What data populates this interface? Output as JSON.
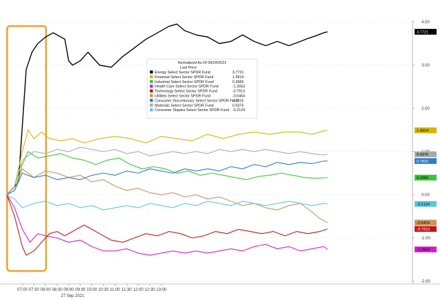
{
  "chart_data": {
    "type": "line",
    "title": "",
    "xlabel": "",
    "ylabel": "",
    "date_label": "27 Sep 2021",
    "time_ticks": [
      "07:00",
      "07:30",
      "08:00",
      "08:30",
      "09:00",
      "09:30",
      "10:00",
      "10:30",
      "11:00",
      "11:30",
      "12:00",
      "12:30",
      "13:00"
    ],
    "y_ticks": [
      "4.00",
      "3.00",
      "2.00",
      "1.00",
      "0.00",
      "-1.00",
      "-2.00"
    ],
    "y_range": [
      -2.0,
      4.0
    ],
    "legend": {
      "title": "Normalized As Of 09/24/2021",
      "subtitle": "Last Price",
      "placement": "center"
    },
    "series": [
      {
        "name": "Energy Select Sector SPDR Fund",
        "last": "3.7721",
        "color": "#000000",
        "text_color": "#ffffff",
        "points": [
          [
            0,
            0
          ],
          [
            6,
            0.3
          ],
          [
            10,
            2.9
          ],
          [
            13,
            3.3
          ],
          [
            16,
            3.5
          ],
          [
            20,
            3.65
          ],
          [
            24,
            3.75
          ],
          [
            28,
            3.65
          ],
          [
            30,
            3.6
          ],
          [
            32,
            3.1
          ],
          [
            34,
            3.0
          ],
          [
            38,
            3.1
          ],
          [
            42,
            3.3
          ],
          [
            48,
            3.0
          ],
          [
            54,
            2.95
          ],
          [
            60,
            3.2
          ],
          [
            66,
            3.4
          ],
          [
            72,
            3.6
          ],
          [
            78,
            3.75
          ],
          [
            84,
            3.9
          ],
          [
            88,
            3.95
          ],
          [
            92,
            3.8
          ],
          [
            98,
            3.7
          ],
          [
            104,
            3.65
          ],
          [
            110,
            3.5
          ],
          [
            116,
            3.55
          ],
          [
            122,
            3.7
          ],
          [
            128,
            3.55
          ],
          [
            134,
            3.45
          ],
          [
            140,
            3.55
          ],
          [
            146,
            3.45
          ],
          [
            152,
            3.55
          ],
          [
            156,
            3.62
          ],
          [
            160,
            3.68
          ],
          [
            164,
            3.75
          ],
          [
            166,
            3.7721
          ]
        ]
      },
      {
        "name": "Financial Select Sector SPDR Fund",
        "last": "1.4914",
        "color": "#d4b406",
        "text_color": "#000000",
        "points": [
          [
            0,
            0
          ],
          [
            4,
            0.2
          ],
          [
            8,
            1.0
          ],
          [
            11,
            1.5
          ],
          [
            14,
            1.3
          ],
          [
            18,
            1.45
          ],
          [
            22,
            1.3
          ],
          [
            28,
            1.25
          ],
          [
            34,
            1.3
          ],
          [
            40,
            1.2
          ],
          [
            48,
            1.3
          ],
          [
            56,
            1.35
          ],
          [
            64,
            1.3
          ],
          [
            72,
            1.2
          ],
          [
            80,
            1.35
          ],
          [
            88,
            1.3
          ],
          [
            96,
            1.25
          ],
          [
            104,
            1.4
          ],
          [
            112,
            1.3
          ],
          [
            120,
            1.4
          ],
          [
            128,
            1.45
          ],
          [
            136,
            1.4
          ],
          [
            144,
            1.45
          ],
          [
            152,
            1.45
          ],
          [
            158,
            1.4
          ],
          [
            164,
            1.48
          ],
          [
            166,
            1.4914
          ]
        ]
      },
      {
        "name": "Industrial Select Sector SPDR Fund",
        "last": "0.3966",
        "color": "#37c837",
        "text_color": "#000000",
        "points": [
          [
            0,
            0
          ],
          [
            4,
            0.1
          ],
          [
            8,
            0.7
          ],
          [
            11,
            1.0
          ],
          [
            16,
            0.85
          ],
          [
            22,
            0.9
          ],
          [
            28,
            0.95
          ],
          [
            34,
            0.85
          ],
          [
            40,
            0.8
          ],
          [
            46,
            0.7
          ],
          [
            52,
            0.8
          ],
          [
            58,
            0.85
          ],
          [
            64,
            0.7
          ],
          [
            70,
            0.6
          ],
          [
            76,
            0.65
          ],
          [
            82,
            0.6
          ],
          [
            88,
            0.5
          ],
          [
            94,
            0.55
          ],
          [
            100,
            0.45
          ],
          [
            106,
            0.5
          ],
          [
            112,
            0.45
          ],
          [
            118,
            0.4
          ],
          [
            124,
            0.35
          ],
          [
            130,
            0.42
          ],
          [
            136,
            0.45
          ],
          [
            142,
            0.5
          ],
          [
            148,
            0.45
          ],
          [
            154,
            0.4
          ],
          [
            160,
            0.38
          ],
          [
            166,
            0.3966
          ]
        ]
      },
      {
        "name": "Health Care Select Sector SPDR Fund",
        "last": "-1.2653",
        "color": "#d21ed2",
        "text_color": "#000000",
        "points": [
          [
            0,
            0
          ],
          [
            4,
            -0.3
          ],
          [
            8,
            -0.8
          ],
          [
            12,
            -1.1
          ],
          [
            16,
            -0.9
          ],
          [
            20,
            -0.95
          ],
          [
            26,
            -1.0
          ],
          [
            32,
            -1.1
          ],
          [
            38,
            -1.05
          ],
          [
            44,
            -1.2
          ],
          [
            50,
            -1.3
          ],
          [
            56,
            -1.3
          ],
          [
            62,
            -1.25
          ],
          [
            68,
            -1.35
          ],
          [
            74,
            -1.4
          ],
          [
            80,
            -1.35
          ],
          [
            86,
            -1.3
          ],
          [
            92,
            -1.35
          ],
          [
            98,
            -1.3
          ],
          [
            104,
            -1.35
          ],
          [
            110,
            -1.3
          ],
          [
            116,
            -1.25
          ],
          [
            122,
            -1.3
          ],
          [
            128,
            -1.2
          ],
          [
            134,
            -1.15
          ],
          [
            140,
            -1.25
          ],
          [
            146,
            -1.2
          ],
          [
            152,
            -1.3
          ],
          [
            158,
            -1.25
          ],
          [
            164,
            -1.2
          ],
          [
            166,
            -1.2653
          ]
        ]
      },
      {
        "name": "Technology Select Sector SPDR Fund",
        "last": "-0.7913",
        "color": "#c81414",
        "text_color": "#ffffff",
        "points": [
          [
            0,
            0
          ],
          [
            4,
            -0.5
          ],
          [
            8,
            -1.2
          ],
          [
            10,
            -1.4
          ],
          [
            14,
            -1.3
          ],
          [
            18,
            -1.1
          ],
          [
            22,
            -0.9
          ],
          [
            26,
            -0.85
          ],
          [
            30,
            -0.95
          ],
          [
            36,
            -0.8
          ],
          [
            40,
            -0.7
          ],
          [
            44,
            -0.8
          ],
          [
            48,
            -0.9
          ],
          [
            54,
            -1.05
          ],
          [
            60,
            -1.1
          ],
          [
            66,
            -1.0
          ],
          [
            72,
            -0.9
          ],
          [
            78,
            -0.95
          ],
          [
            84,
            -0.85
          ],
          [
            90,
            -0.9
          ],
          [
            96,
            -1.0
          ],
          [
            102,
            -0.95
          ],
          [
            108,
            -0.85
          ],
          [
            114,
            -0.9
          ],
          [
            120,
            -0.8
          ],
          [
            126,
            -0.85
          ],
          [
            132,
            -0.9
          ],
          [
            138,
            -0.85
          ],
          [
            144,
            -0.95
          ],
          [
            150,
            -0.85
          ],
          [
            156,
            -0.9
          ],
          [
            162,
            -0.85
          ],
          [
            166,
            -0.7913
          ]
        ]
      },
      {
        "name": "Utilities Select Sector SPDR Fund",
        "last": "-0.6454",
        "color": "#c8955a",
        "text_color": "#000000",
        "points": [
          [
            0,
            0
          ],
          [
            4,
            0.1
          ],
          [
            8,
            0.6
          ],
          [
            14,
            0.4
          ],
          [
            20,
            0.55
          ],
          [
            26,
            0.5
          ],
          [
            32,
            0.4
          ],
          [
            38,
            0.45
          ],
          [
            44,
            0.3
          ],
          [
            50,
            0.35
          ],
          [
            56,
            0.2
          ],
          [
            62,
            0.1
          ],
          [
            68,
            0.15
          ],
          [
            74,
            0.05
          ],
          [
            80,
            0.0
          ],
          [
            86,
            0.05
          ],
          [
            92,
            -0.05
          ],
          [
            98,
            0.0
          ],
          [
            104,
            -0.1
          ],
          [
            110,
            -0.05
          ],
          [
            116,
            -0.15
          ],
          [
            122,
            -0.25
          ],
          [
            128,
            -0.2
          ],
          [
            134,
            -0.3
          ],
          [
            140,
            -0.35
          ],
          [
            146,
            -0.25
          ],
          [
            152,
            -0.2
          ],
          [
            158,
            -0.4
          ],
          [
            162,
            -0.55
          ],
          [
            166,
            -0.6454
          ]
        ]
      },
      {
        "name": "Consumer Discretionary Select Sector SPDR Fund",
        "last": "0.7815",
        "color": "#2d7dc8",
        "text_color": "#ffffff",
        "points": [
          [
            0,
            0
          ],
          [
            4,
            0.1
          ],
          [
            8,
            0.5
          ],
          [
            14,
            0.4
          ],
          [
            20,
            0.45
          ],
          [
            26,
            0.35
          ],
          [
            32,
            0.4
          ],
          [
            38,
            0.35
          ],
          [
            44,
            0.45
          ],
          [
            50,
            0.5
          ],
          [
            56,
            0.45
          ],
          [
            62,
            0.55
          ],
          [
            68,
            0.5
          ],
          [
            74,
            0.6
          ],
          [
            80,
            0.55
          ],
          [
            86,
            0.5
          ],
          [
            92,
            0.6
          ],
          [
            98,
            0.55
          ],
          [
            104,
            0.6
          ],
          [
            110,
            0.55
          ],
          [
            116,
            0.65
          ],
          [
            122,
            0.6
          ],
          [
            128,
            0.7
          ],
          [
            134,
            0.65
          ],
          [
            140,
            0.75
          ],
          [
            146,
            0.7
          ],
          [
            152,
            0.75
          ],
          [
            158,
            0.72
          ],
          [
            164,
            0.78
          ],
          [
            166,
            0.7815
          ]
        ]
      },
      {
        "name": "Materials Select Sector SPDR Fund",
        "last": "0.9375",
        "color": "#aaaaaa",
        "text_color": "#000000",
        "points": [
          [
            0,
            0
          ],
          [
            4,
            0.2
          ],
          [
            8,
            0.8
          ],
          [
            14,
            1.0
          ],
          [
            20,
            0.95
          ],
          [
            26,
            1.05
          ],
          [
            32,
            1.0
          ],
          [
            38,
            1.1
          ],
          [
            44,
            1.05
          ],
          [
            50,
            1.0
          ],
          [
            56,
            1.05
          ],
          [
            62,
            0.95
          ],
          [
            68,
            1.0
          ],
          [
            74,
            0.9
          ],
          [
            80,
            0.95
          ],
          [
            86,
            1.0
          ],
          [
            92,
            0.95
          ],
          [
            98,
            1.0
          ],
          [
            104,
            0.95
          ],
          [
            110,
            1.05
          ],
          [
            116,
            1.0
          ],
          [
            122,
            1.05
          ],
          [
            128,
            1.0
          ],
          [
            134,
            1.05
          ],
          [
            140,
            1.0
          ],
          [
            146,
            0.95
          ],
          [
            152,
            1.0
          ],
          [
            158,
            0.95
          ],
          [
            164,
            0.92
          ],
          [
            166,
            0.9375
          ]
        ]
      },
      {
        "name": "Consumer Staples Select Sector SPDR Fund",
        "last": "-0.2124",
        "color": "#5ac8dc",
        "text_color": "#000000",
        "points": [
          [
            0,
            0
          ],
          [
            4,
            -0.1
          ],
          [
            8,
            -0.3
          ],
          [
            14,
            -0.2
          ],
          [
            20,
            -0.15
          ],
          [
            26,
            -0.25
          ],
          [
            32,
            -0.2
          ],
          [
            38,
            -0.3
          ],
          [
            44,
            -0.25
          ],
          [
            50,
            -0.35
          ],
          [
            56,
            -0.3
          ],
          [
            62,
            -0.25
          ],
          [
            68,
            -0.3
          ],
          [
            74,
            -0.2
          ],
          [
            80,
            -0.25
          ],
          [
            86,
            -0.3
          ],
          [
            92,
            -0.2
          ],
          [
            98,
            -0.25
          ],
          [
            104,
            -0.15
          ],
          [
            110,
            -0.2
          ],
          [
            116,
            -0.25
          ],
          [
            122,
            -0.15
          ],
          [
            128,
            -0.2
          ],
          [
            134,
            -0.25
          ],
          [
            140,
            -0.2
          ],
          [
            146,
            -0.15
          ],
          [
            152,
            -0.2
          ],
          [
            158,
            -0.25
          ],
          [
            164,
            -0.2
          ],
          [
            166,
            -0.2124
          ]
        ]
      }
    ],
    "highlight_box": {
      "x_range": [
        -2,
        16
      ],
      "y_range": [
        -1.7,
        4.0
      ],
      "color": "#e8a22f"
    }
  }
}
